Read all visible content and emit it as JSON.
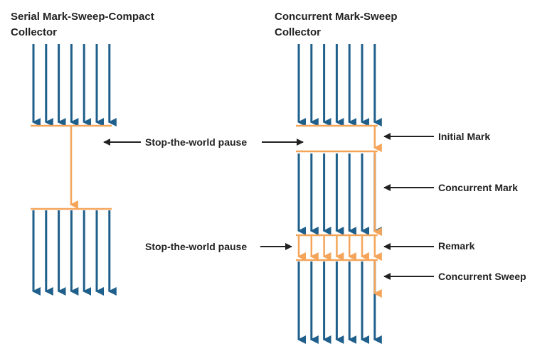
{
  "colors": {
    "thread": "#1f5f8b",
    "gc": "#f5a55a",
    "label_arrow": "#222222"
  },
  "titles": {
    "serial_line1": "Serial Mark-Sweep-Compact",
    "serial_line2": "Collector",
    "concurrent_line1": "Concurrent Mark-Sweep",
    "concurrent_line2": "Collector"
  },
  "labels": {
    "stw_top": "Stop-the-world pause",
    "stw_bottom": "Stop-the-world pause",
    "initial_mark": "Initial Mark",
    "concurrent_mark": "Concurrent Mark",
    "remark": "Remark",
    "concurrent_sweep": "Concurrent Sweep"
  },
  "diagram": {
    "serial_threads": 7,
    "concurrent_threads": 7,
    "remark_gc_threads": 7
  }
}
